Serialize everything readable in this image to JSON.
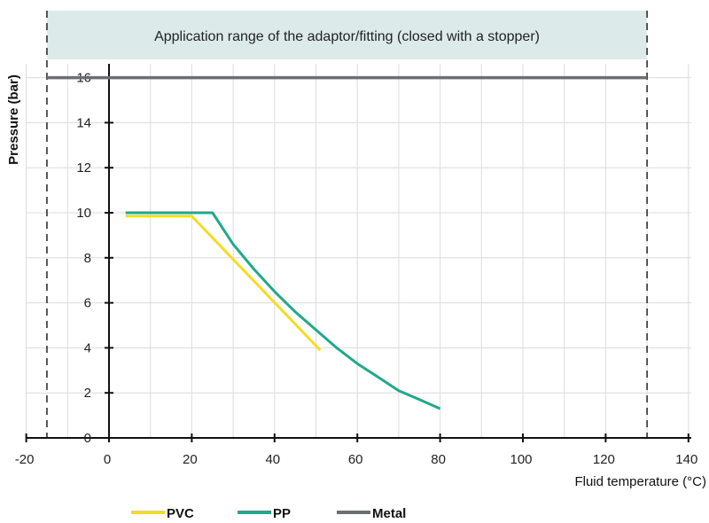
{
  "chart_data": {
    "type": "line",
    "title": "Application range of the adaptor/fitting (closed with a stopper)",
    "xlabel": "Fluid temperature (°C)",
    "ylabel": "Pressure (bar)",
    "xlim": [
      -20,
      140
    ],
    "ylim": [
      0,
      16
    ],
    "x_ticks": [
      -20,
      0,
      20,
      40,
      60,
      80,
      100,
      120,
      140
    ],
    "y_ticks": [
      0,
      2,
      4,
      6,
      8,
      10,
      12,
      14,
      16
    ],
    "application_range": [
      -15,
      130
    ],
    "grid": true,
    "legend_position": "bottom-left",
    "series": [
      {
        "name": "PVC",
        "color": "#f5dc23",
        "x": [
          4,
          20,
          51
        ],
        "y": [
          9.85,
          9.85,
          3.9
        ]
      },
      {
        "name": "PP",
        "color": "#1fa98b",
        "x": [
          4,
          25,
          30,
          35,
          40,
          45,
          50,
          55,
          60,
          65,
          70,
          75,
          80
        ],
        "y": [
          10,
          10,
          8.6,
          7.5,
          6.5,
          5.6,
          4.8,
          4.0,
          3.3,
          2.7,
          2.1,
          1.7,
          1.3
        ]
      },
      {
        "name": "Metal",
        "color": "#6b6e73",
        "x": [
          -15,
          130
        ],
        "y": [
          16,
          16
        ]
      }
    ]
  }
}
